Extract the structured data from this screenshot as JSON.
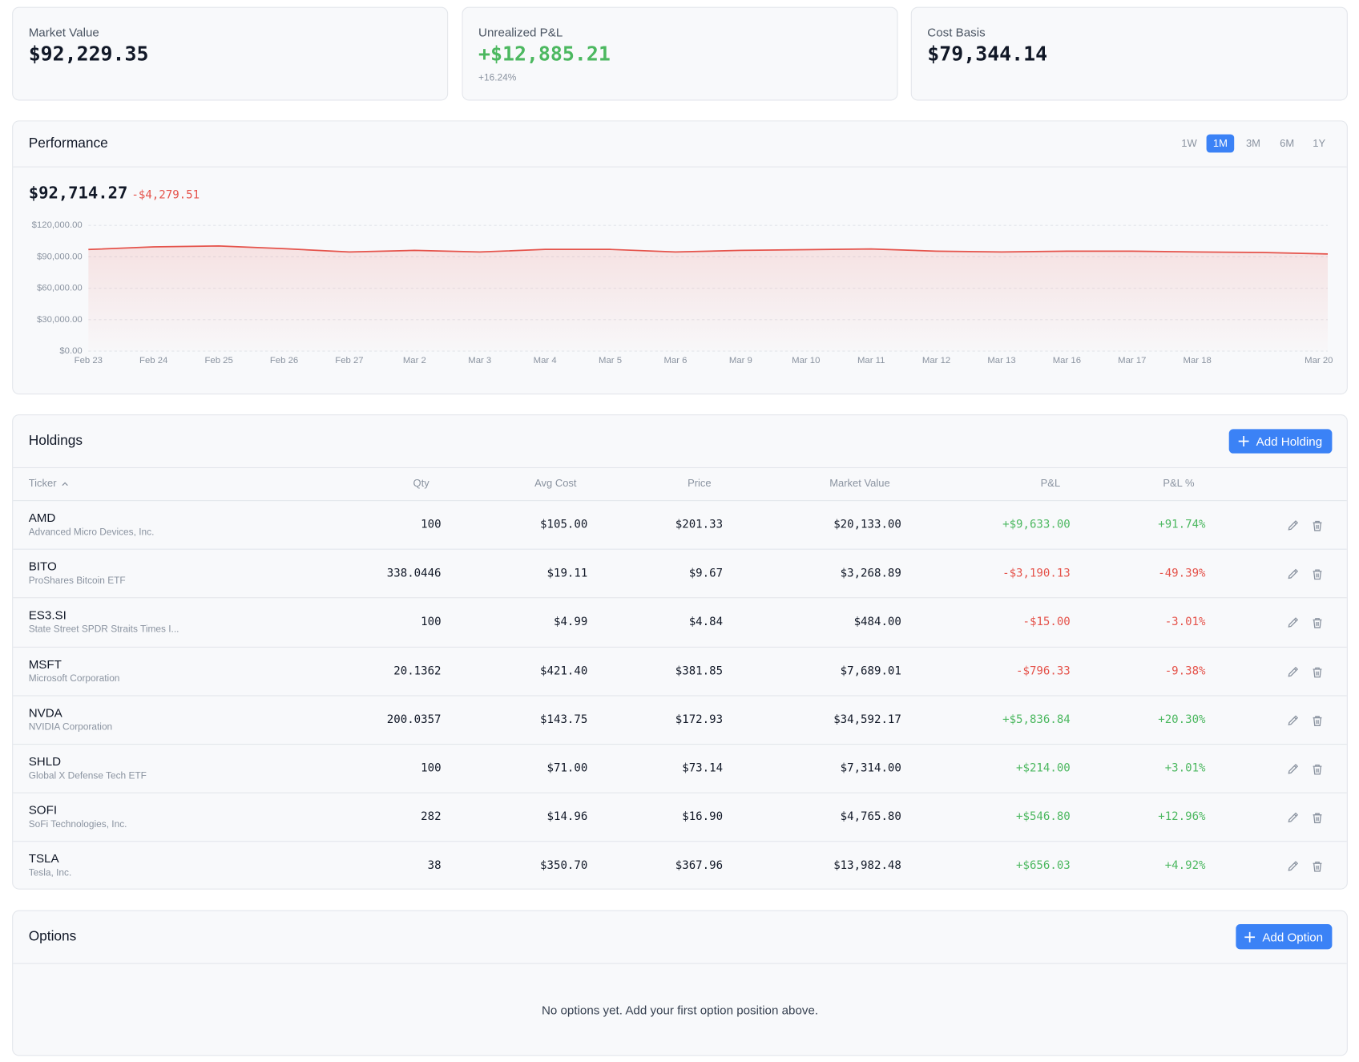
{
  "summary": [
    {
      "label": "Market Value",
      "value": "$92,229.35"
    },
    {
      "label": "Unrealized P&L",
      "value": "+$12,885.21",
      "sub": "+16.24%"
    },
    {
      "label": "Cost Basis",
      "value": "$79,344.14"
    }
  ],
  "performance": {
    "title": "Performance",
    "ranges": [
      "1W",
      "1M",
      "3M",
      "6M",
      "1Y"
    ],
    "selected_range": "1M",
    "current_value": "$92,714.27",
    "change": "-$4,279.51"
  },
  "chart_data": {
    "type": "area",
    "x": [
      "Feb 23",
      "Feb 24",
      "Feb 25",
      "Feb 26",
      "Feb 27",
      "Mar 2",
      "Mar 3",
      "Mar 4",
      "Mar 5",
      "Mar 6",
      "Mar 9",
      "Mar 10",
      "Mar 11",
      "Mar 12",
      "Mar 13",
      "Mar 16",
      "Mar 17",
      "Mar 18",
      null,
      "Mar 20"
    ],
    "series": [
      {
        "color": "#e5534b",
        "values": [
          96994,
          99500,
          100400,
          97800,
          94600,
          96200,
          94600,
          97100,
          97100,
          94600,
          96200,
          96800,
          97500,
          95400,
          94600,
          95400,
          95400,
          94600,
          94200,
          92714.27
        ]
      }
    ],
    "ylim": [
      0,
      120000
    ],
    "yticks": [
      {
        "value": 0,
        "label": "$0.00"
      },
      {
        "value": 30000,
        "label": "$30,000.00"
      },
      {
        "value": 60000,
        "label": "$60,000.00"
      },
      {
        "value": 90000,
        "label": "$90,000.00"
      },
      {
        "value": 120000,
        "label": "$120,000.00"
      }
    ],
    "grid": true
  },
  "holdings": {
    "title": "Holdings",
    "button": "Add Holding",
    "columns": [
      "Ticker",
      "Qty",
      "Avg Cost",
      "Price",
      "Market Value",
      "P&L",
      "P&L %"
    ],
    "rows": [
      {
        "ticker": "AMD",
        "name": "Advanced Micro Devices, Inc.",
        "qty": "100",
        "avg_cost": "$105.00",
        "price": "$201.33",
        "market_value": "$20,133.00",
        "pl": "+$9,633.00",
        "pl_pct": "+91.74%"
      },
      {
        "ticker": "BITO",
        "name": "ProShares Bitcoin ETF",
        "qty": "338.0446",
        "avg_cost": "$19.11",
        "price": "$9.67",
        "market_value": "$3,268.89",
        "pl": "-$3,190.13",
        "pl_pct": "-49.39%"
      },
      {
        "ticker": "ES3.SI",
        "name": "State Street SPDR Straits Times I...",
        "qty": "100",
        "avg_cost": "$4.99",
        "price": "$4.84",
        "market_value": "$484.00",
        "pl": "-$15.00",
        "pl_pct": "-3.01%"
      },
      {
        "ticker": "MSFT",
        "name": "Microsoft Corporation",
        "qty": "20.1362",
        "avg_cost": "$421.40",
        "price": "$381.85",
        "market_value": "$7,689.01",
        "pl": "-$796.33",
        "pl_pct": "-9.38%"
      },
      {
        "ticker": "NVDA",
        "name": "NVIDIA Corporation",
        "qty": "200.0357",
        "avg_cost": "$143.75",
        "price": "$172.93",
        "market_value": "$34,592.17",
        "pl": "+$5,836.84",
        "pl_pct": "+20.30%"
      },
      {
        "ticker": "SHLD",
        "name": "Global X Defense Tech ETF",
        "qty": "100",
        "avg_cost": "$71.00",
        "price": "$73.14",
        "market_value": "$7,314.00",
        "pl": "+$214.00",
        "pl_pct": "+3.01%"
      },
      {
        "ticker": "SOFI",
        "name": "SoFi Technologies, Inc.",
        "qty": "282",
        "avg_cost": "$14.96",
        "price": "$16.90",
        "market_value": "$4,765.80",
        "pl": "+$546.80",
        "pl_pct": "+12.96%"
      },
      {
        "ticker": "TSLA",
        "name": "Tesla, Inc.",
        "qty": "38",
        "avg_cost": "$350.70",
        "price": "$367.96",
        "market_value": "$13,982.48",
        "pl": "+$656.03",
        "pl_pct": "+4.92%"
      }
    ]
  },
  "options": {
    "title": "Options",
    "button": "Add Option",
    "empty": "No options yet. Add your first option position above."
  }
}
